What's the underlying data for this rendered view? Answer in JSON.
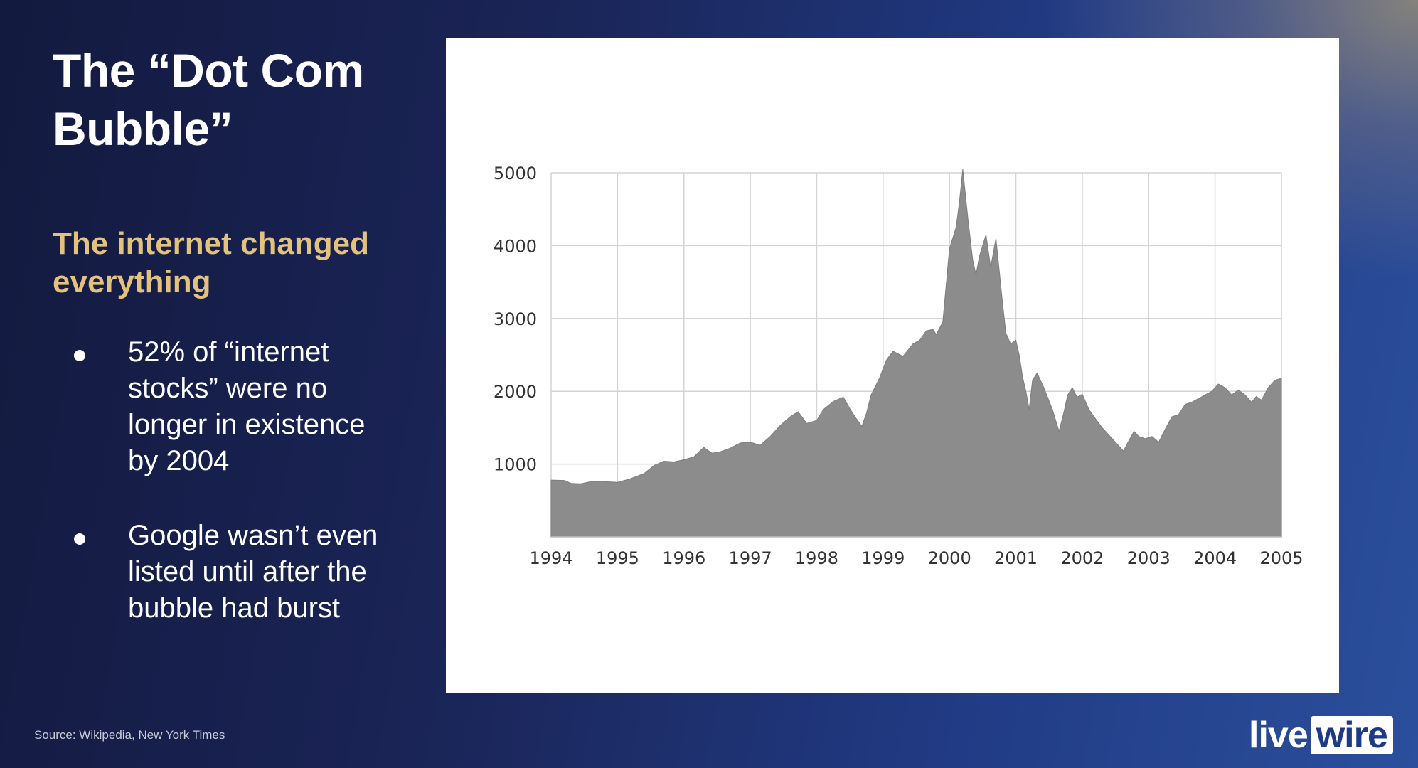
{
  "slide": {
    "title_line1": "The “Dot Com",
    "title_line2": "Bubble”",
    "subtitle_line1": "The internet changed",
    "subtitle_line2": "everything",
    "bullets": [
      {
        "lines": [
          "52% of “internet",
          "stocks” were no",
          "longer in existence",
          "by 2004"
        ]
      },
      {
        "lines": [
          "Google wasn’t even",
          "listed until after the",
          "bubble had burst"
        ]
      }
    ],
    "source": "Source: Wikipedia, New York Times",
    "logo_live": "live",
    "logo_wire": "wire"
  },
  "colors": {
    "title": "#ffffff",
    "subtitle": "#e3c27e",
    "area_fill": "#8c8c8c",
    "grid": "#d3d3d3"
  },
  "chart_data": {
    "type": "area",
    "title": "",
    "xlabel": "",
    "ylabel": "",
    "xlim": [
      1994,
      2005
    ],
    "ylim": [
      0,
      5000
    ],
    "grid": true,
    "x_ticks": [
      "1994",
      "1995",
      "1996",
      "1997",
      "1998",
      "1999",
      "2000",
      "2001",
      "2002",
      "2003",
      "2004",
      "2005"
    ],
    "y_ticks": [
      "1000",
      "2000",
      "3000",
      "4000",
      "5000"
    ],
    "series": [
      {
        "x": [
          1994.0,
          1994.2,
          1994.3,
          1994.45,
          1994.6,
          1994.75,
          1994.9,
          1995.0,
          1995.2,
          1995.4,
          1995.55,
          1995.7,
          1995.85,
          1996.0,
          1996.15,
          1996.3,
          1996.42,
          1996.55,
          1996.7,
          1996.85,
          1997.0,
          1997.15,
          1997.3,
          1997.45,
          1997.6,
          1997.72,
          1997.85,
          1998.0,
          1998.1,
          1998.25,
          1998.4,
          1998.5,
          1998.6,
          1998.68,
          1998.75,
          1998.82,
          1998.95,
          1999.05,
          1999.15,
          1999.3,
          1999.45,
          1999.55,
          1999.65,
          1999.75,
          1999.8,
          1999.9,
          2000.0,
          2000.1,
          2000.15,
          2000.2,
          2000.28,
          2000.35,
          2000.4,
          2000.45,
          2000.55,
          2000.62,
          2000.7,
          2000.75,
          2000.8,
          2000.85,
          2000.92,
          2001.0,
          2001.05,
          2001.1,
          2001.15,
          2001.2,
          2001.25,
          2001.32,
          2001.42,
          2001.55,
          2001.65,
          2001.72,
          2001.78,
          2001.85,
          2001.92,
          2002.0,
          2002.1,
          2002.2,
          2002.3,
          2002.42,
          2002.55,
          2002.62,
          2002.7,
          2002.78,
          2002.85,
          2002.95,
          2003.05,
          2003.15,
          2003.25,
          2003.35,
          2003.45,
          2003.55,
          2003.65,
          2003.75,
          2003.85,
          2003.95,
          2004.05,
          2004.15,
          2004.25,
          2004.35,
          2004.45,
          2004.55,
          2004.62,
          2004.7,
          2004.8,
          2004.9,
          2005.0
        ],
        "values": [
          780,
          775,
          735,
          730,
          760,
          765,
          755,
          750,
          800,
          870,
          980,
          1040,
          1030,
          1060,
          1100,
          1230,
          1150,
          1170,
          1220,
          1290,
          1300,
          1260,
          1380,
          1530,
          1650,
          1720,
          1560,
          1600,
          1750,
          1860,
          1920,
          1760,
          1620,
          1520,
          1700,
          1950,
          2190,
          2430,
          2550,
          2480,
          2650,
          2700,
          2830,
          2850,
          2780,
          2950,
          3960,
          4250,
          4600,
          5050,
          4350,
          3800,
          3600,
          3850,
          4150,
          3700,
          4100,
          3650,
          3200,
          2800,
          2650,
          2700,
          2500,
          2200,
          2000,
          1750,
          2150,
          2250,
          2050,
          1750,
          1450,
          1700,
          1950,
          2050,
          1920,
          1960,
          1750,
          1620,
          1500,
          1380,
          1250,
          1180,
          1320,
          1450,
          1380,
          1350,
          1380,
          1300,
          1480,
          1650,
          1680,
          1820,
          1850,
          1900,
          1950,
          2000,
          2100,
          2050,
          1950,
          2020,
          1950,
          1850,
          1930,
          1880,
          2050,
          2150,
          2180
        ]
      }
    ]
  }
}
